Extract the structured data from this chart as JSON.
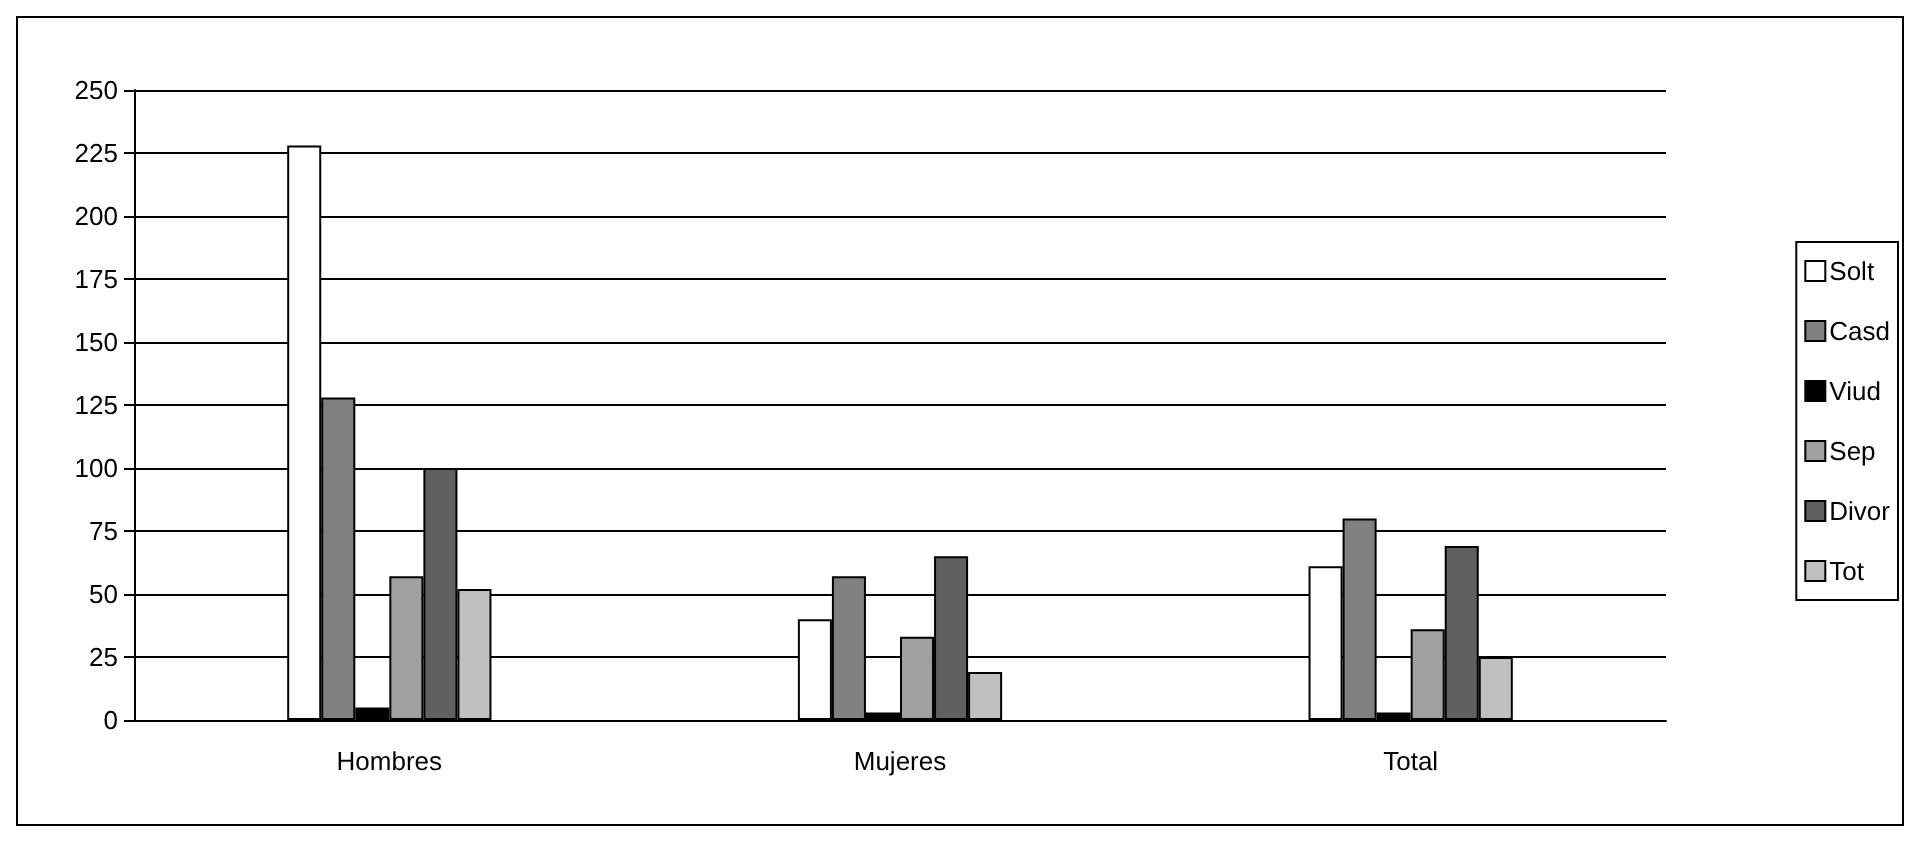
{
  "chart_data": {
    "type": "bar",
    "categories": [
      "Hombres",
      "Mujeres",
      "Total"
    ],
    "series": [
      {
        "name": "Solt",
        "color": "#ffffff",
        "values": [
          228,
          40,
          61
        ]
      },
      {
        "name": "Casd",
        "color": "#808080",
        "values": [
          128,
          57,
          80
        ]
      },
      {
        "name": "Viud",
        "color": "#000000",
        "values": [
          5,
          3,
          3
        ]
      },
      {
        "name": "Sep",
        "color": "#a0a0a0",
        "values": [
          57,
          33,
          36
        ]
      },
      {
        "name": "Divor",
        "color": "#606060",
        "values": [
          100,
          65,
          69
        ]
      },
      {
        "name": "Tot",
        "color": "#c0c0c0",
        "values": [
          52,
          19,
          25
        ]
      }
    ],
    "ylim": [
      0,
      250
    ],
    "yticks": [
      0,
      25,
      50,
      75,
      100,
      125,
      150,
      175,
      200,
      225,
      250
    ],
    "grid": "y",
    "legend": "right"
  }
}
